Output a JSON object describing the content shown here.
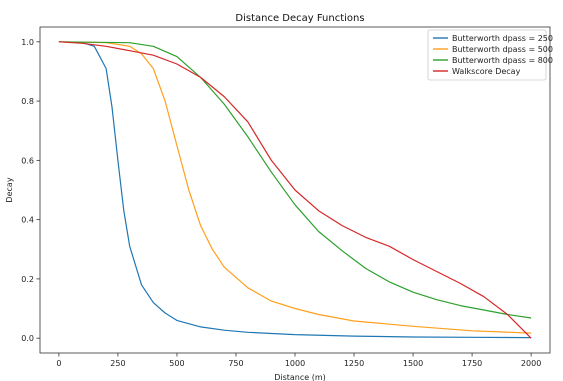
{
  "chart_data": {
    "type": "line",
    "title": "Distance Decay Functions",
    "xlabel": "Distance (m)",
    "ylabel": "Decay",
    "xlim": [
      -80,
      2080
    ],
    "ylim": [
      -0.05,
      1.05
    ],
    "xticks": [
      0,
      250,
      500,
      750,
      1000,
      1250,
      1500,
      1750,
      2000
    ],
    "xtick_labels": [
      "0",
      "250",
      "500",
      "750",
      "1000",
      "1250",
      "1500",
      "1750",
      "2000"
    ],
    "yticks": [
      0.0,
      0.2,
      0.4,
      0.6,
      0.8,
      1.0
    ],
    "ytick_labels": [
      "0.0",
      "0.2",
      "0.4",
      "0.6",
      "0.8",
      "1.0"
    ],
    "legend_position": "top-right",
    "grid": false,
    "series": [
      {
        "name": "Butterworth dpass = 250",
        "color": "#1f77b4",
        "x": [
          0,
          100,
          150,
          200,
          225,
          250,
          275,
          300,
          350,
          400,
          450,
          500,
          600,
          700,
          800,
          1000,
          1250,
          1500,
          1750,
          2000
        ],
        "y": [
          1.0,
          0.997,
          0.985,
          0.91,
          0.78,
          0.6,
          0.43,
          0.31,
          0.18,
          0.12,
          0.085,
          0.06,
          0.038,
          0.027,
          0.02,
          0.012,
          0.007,
          0.004,
          0.003,
          0.002
        ]
      },
      {
        "name": "Butterworth dpass = 500",
        "color": "#ff9f1c",
        "x": [
          0,
          200,
          300,
          350,
          400,
          450,
          500,
          550,
          600,
          650,
          700,
          800,
          900,
          1000,
          1100,
          1250,
          1500,
          1750,
          2000
        ],
        "y": [
          1.0,
          0.997,
          0.985,
          0.96,
          0.91,
          0.8,
          0.65,
          0.5,
          0.38,
          0.3,
          0.24,
          0.17,
          0.125,
          0.1,
          0.08,
          0.058,
          0.04,
          0.025,
          0.017
        ]
      },
      {
        "name": "Butterworth dpass = 800",
        "color": "#2ca02c",
        "x": [
          0,
          300,
          400,
          500,
          600,
          700,
          800,
          900,
          1000,
          1100,
          1200,
          1300,
          1400,
          1500,
          1600,
          1700,
          1800,
          1900,
          2000
        ],
        "y": [
          1.0,
          0.997,
          0.985,
          0.95,
          0.88,
          0.79,
          0.68,
          0.56,
          0.45,
          0.36,
          0.295,
          0.235,
          0.19,
          0.155,
          0.13,
          0.11,
          0.095,
          0.08,
          0.068
        ]
      },
      {
        "name": "Walkscore Decay",
        "color": "#d62728",
        "x": [
          0,
          100,
          200,
          300,
          400,
          500,
          600,
          700,
          800,
          900,
          1000,
          1100,
          1200,
          1300,
          1400,
          1500,
          1600,
          1700,
          1800,
          1900,
          2000
        ],
        "y": [
          1.0,
          0.995,
          0.985,
          0.97,
          0.955,
          0.925,
          0.88,
          0.815,
          0.73,
          0.6,
          0.5,
          0.43,
          0.38,
          0.34,
          0.31,
          0.265,
          0.225,
          0.185,
          0.14,
          0.08,
          0.0
        ]
      }
    ]
  }
}
